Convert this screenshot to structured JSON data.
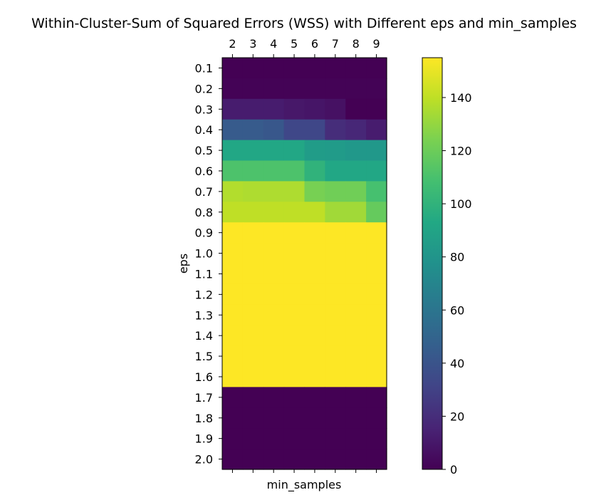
{
  "chart_data": {
    "type": "heatmap",
    "title": "Within-Cluster-Sum of Squared Errors (WSS) with Different eps and min_samples",
    "xlabel": "min_samples",
    "ylabel": "eps",
    "x_ticks": [
      "2",
      "3",
      "4",
      "5",
      "6",
      "7",
      "8",
      "9"
    ],
    "y_ticks": [
      "0.1",
      "0.2",
      "0.3",
      "0.4",
      "0.5",
      "0.6",
      "0.7",
      "0.8",
      "0.9",
      "1.0",
      "1.1",
      "1.2",
      "1.3",
      "1.4",
      "1.5",
      "1.6",
      "1.7",
      "1.8",
      "1.9",
      "2.0"
    ],
    "colorbar": {
      "colormap": "viridis",
      "range": [
        0,
        155
      ],
      "ticks": [
        0,
        20,
        40,
        60,
        80,
        100,
        120,
        140
      ],
      "tick_labels": [
        "0",
        "20",
        "40",
        "60",
        "80",
        "100",
        "120",
        "140"
      ]
    },
    "values": [
      [
        0,
        0,
        0,
        0,
        0,
        0,
        0,
        0
      ],
      [
        1,
        1,
        1,
        1,
        1,
        1,
        1,
        1
      ],
      [
        12,
        12,
        12,
        10,
        9,
        7,
        0,
        0
      ],
      [
        44,
        44,
        42,
        33,
        33,
        20,
        17,
        12
      ],
      [
        92,
        92,
        92,
        92,
        85,
        84,
        82,
        82
      ],
      [
        111,
        111,
        111,
        111,
        100,
        92,
        92,
        92
      ],
      [
        137,
        136,
        136,
        136,
        123,
        121,
        121,
        109
      ],
      [
        140,
        140,
        140,
        140,
        140,
        133,
        133,
        118
      ],
      [
        155,
        155,
        155,
        155,
        155,
        155,
        155,
        155
      ],
      [
        155,
        155,
        155,
        155,
        155,
        155,
        155,
        155
      ],
      [
        155,
        155,
        155,
        155,
        155,
        155,
        155,
        155
      ],
      [
        155,
        155,
        155,
        155,
        155,
        155,
        155,
        155
      ],
      [
        155,
        155,
        155,
        155,
        155,
        155,
        155,
        155
      ],
      [
        155,
        155,
        155,
        155,
        155,
        155,
        155,
        155
      ],
      [
        155,
        155,
        155,
        155,
        155,
        155,
        155,
        155
      ],
      [
        155,
        155,
        155,
        155,
        155,
        155,
        155,
        155
      ],
      [
        0,
        0,
        0,
        0,
        0,
        0,
        0,
        0
      ],
      [
        0,
        0,
        0,
        0,
        0,
        0,
        0,
        0
      ],
      [
        0,
        0,
        0,
        0,
        0,
        0,
        0,
        0
      ],
      [
        0,
        0,
        0,
        0,
        0,
        0,
        0,
        0
      ]
    ]
  }
}
